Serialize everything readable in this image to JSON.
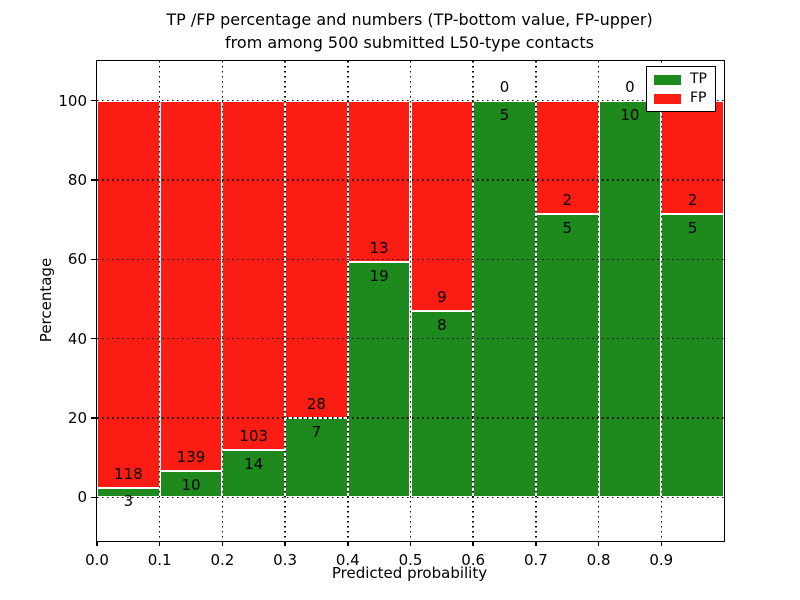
{
  "title": {
    "line1": "TP /FP percentage and numbers (TP-bottom value, FP-upper)",
    "line2": "from among 500 submitted L50-type contacts"
  },
  "axes": {
    "ylabel": "Percentage",
    "xlabel": "Predicted probability",
    "yticks": [
      "0",
      "20",
      "40",
      "60",
      "80",
      "100"
    ],
    "xticks": [
      "0.0",
      "0.1",
      "0.2",
      "0.3",
      "0.4",
      "0.5",
      "0.6",
      "0.7",
      "0.8",
      "0.9"
    ]
  },
  "legend": {
    "items": [
      {
        "label": "TP",
        "color": "#1e8a1e"
      },
      {
        "label": "FP",
        "color": "#fb1c13"
      }
    ]
  },
  "colors": {
    "tp": "#1e8a1e",
    "fp": "#fb1c13",
    "bar_edge": "#ffffff",
    "grid": "#000000",
    "background": "#ffffff"
  },
  "chart_data": {
    "type": "bar",
    "stacked": true,
    "normalized_to_percent": true,
    "title": "TP /FP percentage and numbers (TP-bottom value, FP-upper) from among 500 submitted L50-type contacts",
    "xlabel": "Predicted probability",
    "ylabel": "Percentage",
    "xlim": [
      0.0,
      1.0
    ],
    "ylim": [
      -11,
      110
    ],
    "yticks": [
      0,
      20,
      40,
      60,
      80,
      100
    ],
    "grid": true,
    "legend_position": "upper right",
    "total_contacts": 500,
    "bin_width": 0.1,
    "categories": [
      "0.0-0.1",
      "0.1-0.2",
      "0.2-0.3",
      "0.3-0.4",
      "0.4-0.5",
      "0.5-0.6",
      "0.6-0.7",
      "0.7-0.8",
      "0.8-0.9",
      "0.9-1.0"
    ],
    "series": [
      {
        "name": "TP",
        "color": "#1e8a1e",
        "counts": [
          3,
          10,
          14,
          7,
          19,
          8,
          5,
          5,
          10,
          5
        ]
      },
      {
        "name": "FP",
        "color": "#fb1c13",
        "counts": [
          118,
          139,
          103,
          28,
          13,
          9,
          0,
          2,
          0,
          2
        ]
      }
    ],
    "tp_percent": [
      2.48,
      6.71,
      11.97,
      20.0,
      59.38,
      47.06,
      100.0,
      71.43,
      100.0,
      71.43
    ]
  }
}
